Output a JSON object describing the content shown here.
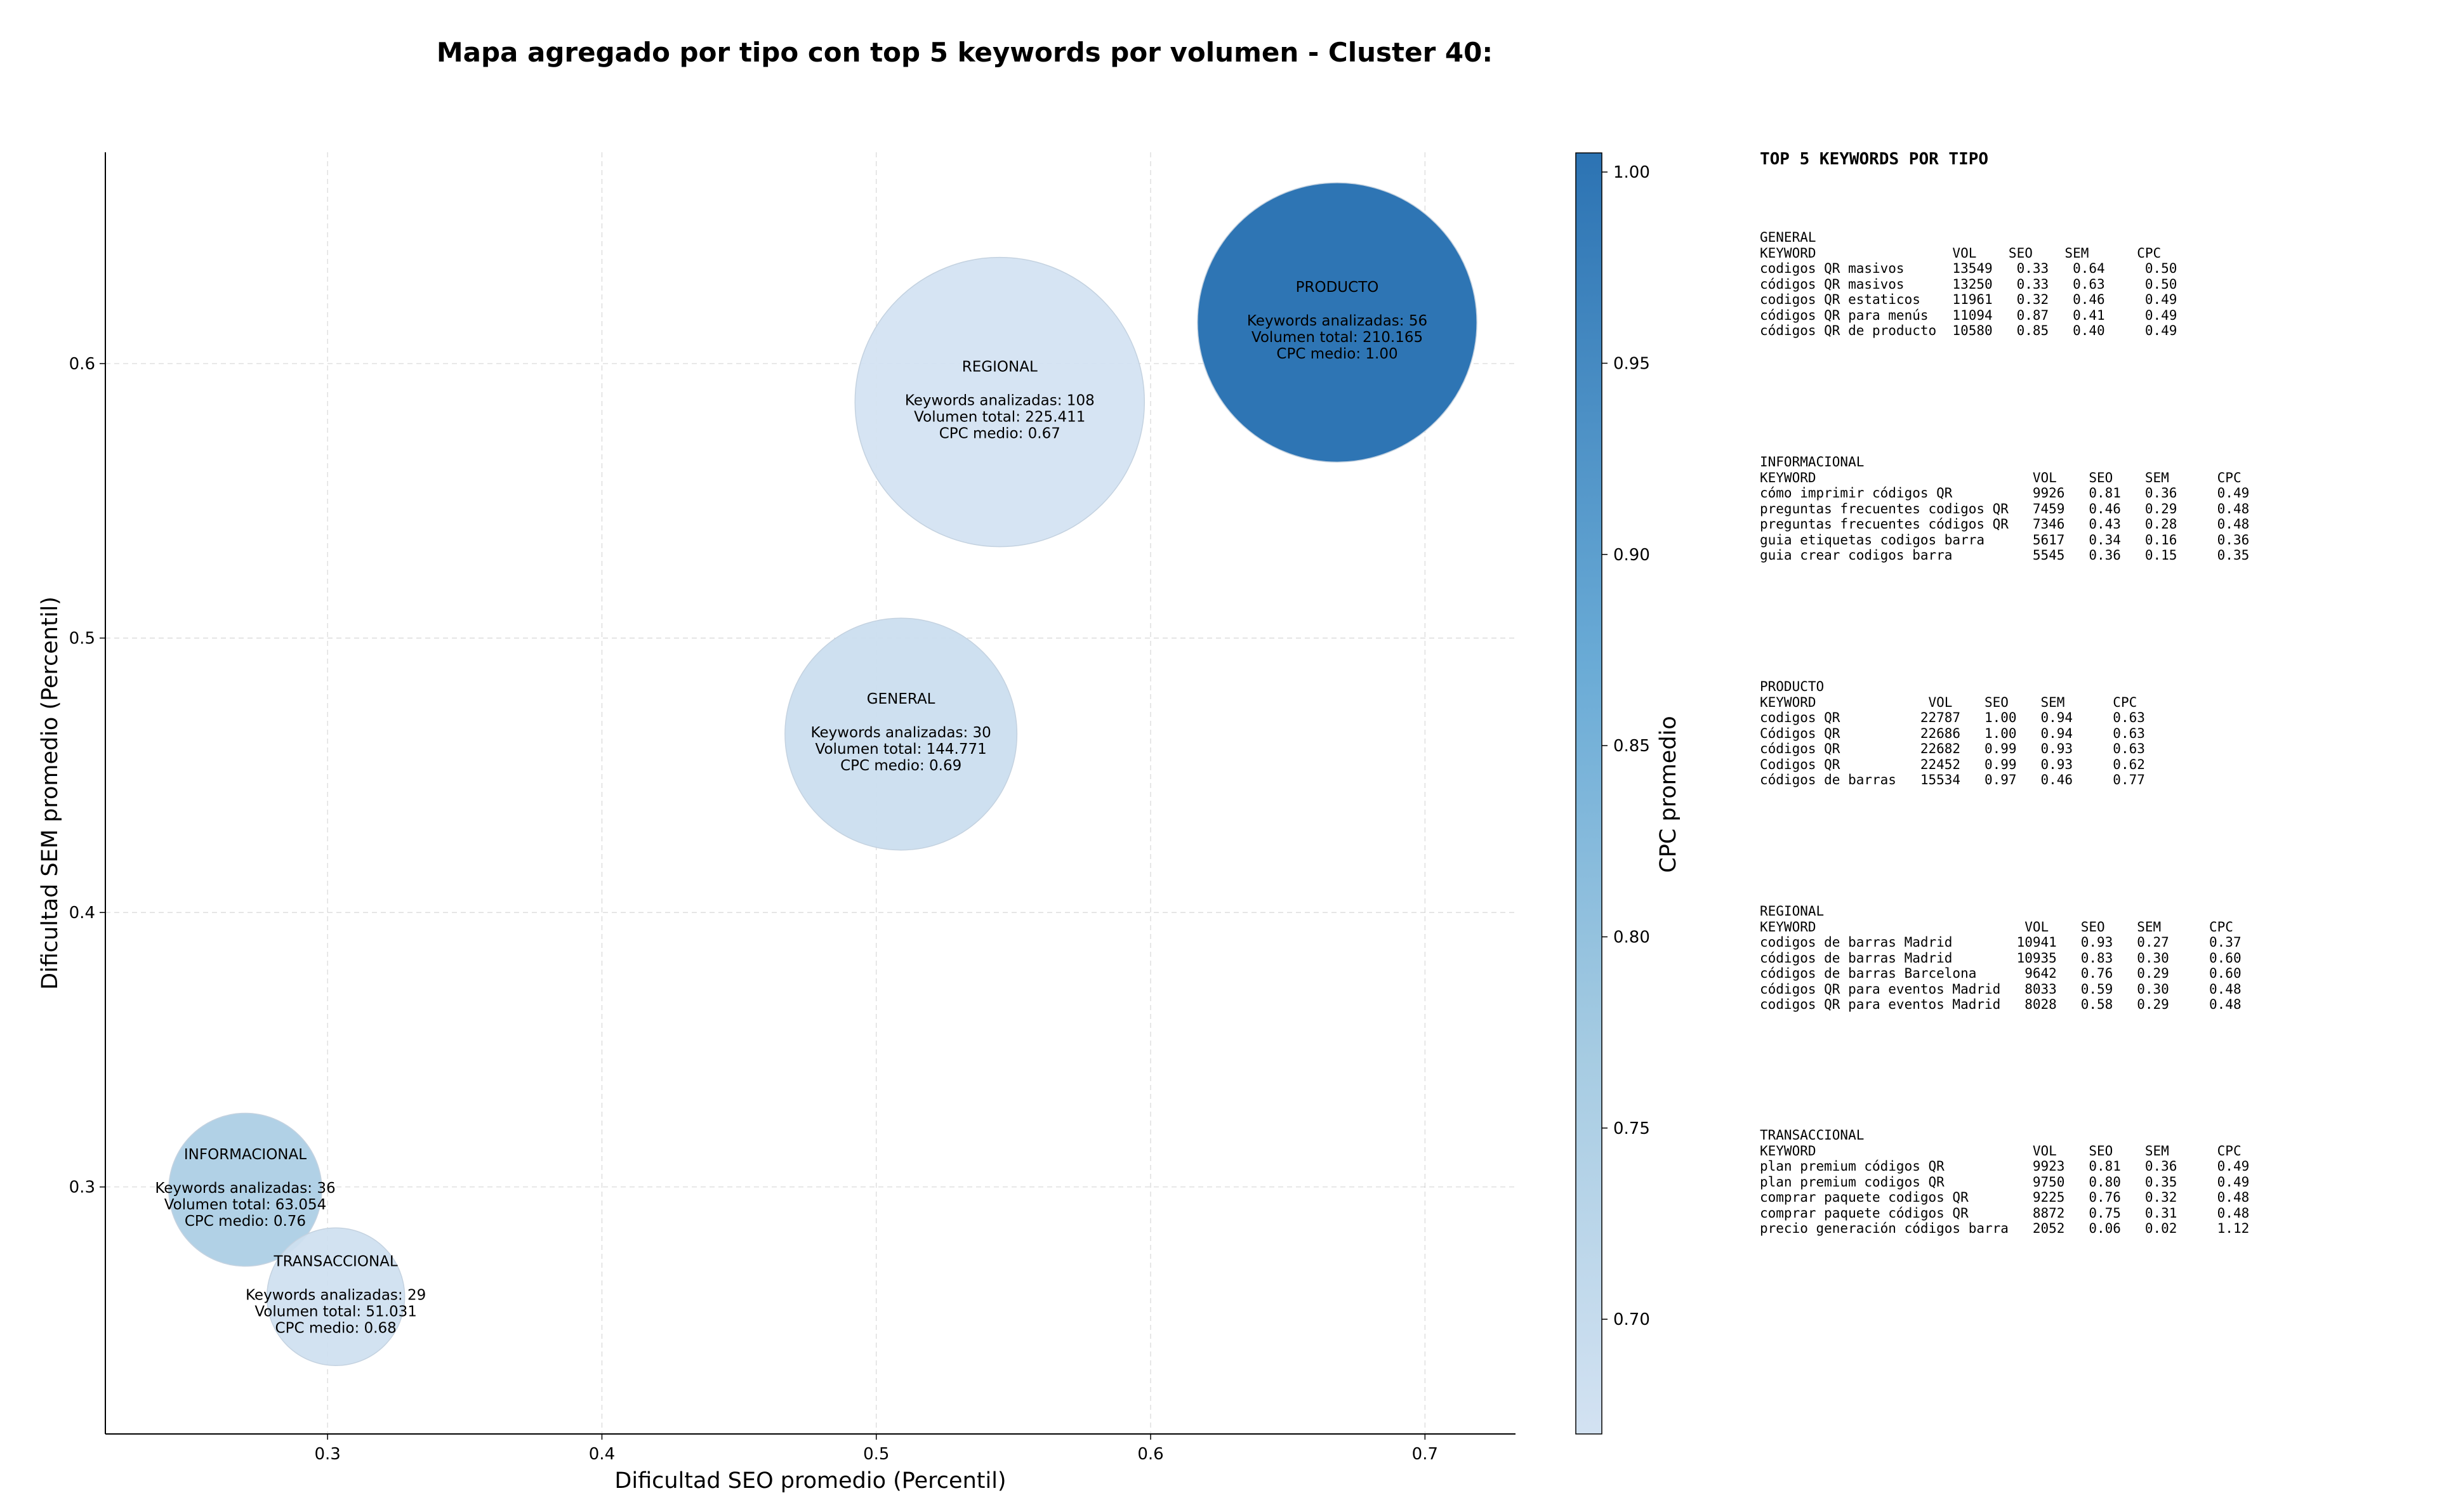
{
  "chart_data": {
    "type": "scatter",
    "title": "Mapa agregado por tipo con top 5 keywords por volumen - Cluster 40:",
    "xlabel": "Dificultad SEO promedio (Percentil)",
    "ylabel": "Dificultad SEM promedio (Percentil)",
    "xlim": [
      0.219,
      0.733
    ],
    "ylim": [
      0.21,
      0.677
    ],
    "xticks": [
      "0.3",
      "0.4",
      "0.5",
      "0.6",
      "0.7"
    ],
    "yticks": [
      "0.3",
      "0.4",
      "0.5",
      "0.6"
    ],
    "grid": true,
    "colorbar": {
      "label": "CPC promedio",
      "range": [
        0.67,
        1.005
      ],
      "ticks": [
        "0.70",
        "0.75",
        "0.80",
        "0.85",
        "0.90",
        "0.95",
        "1.00"
      ]
    },
    "bubbles": [
      {
        "name": "REGIONAL",
        "x": 0.545,
        "y": 0.586,
        "size": 225411,
        "cpc": 0.67,
        "lines": [
          "Keywords analizadas: 108",
          "Volumen total: 225.411",
          "CPC medio: 0.67"
        ]
      },
      {
        "name": "PRODUCTO",
        "x": 0.668,
        "y": 0.615,
        "size": 210165,
        "cpc": 1.0,
        "lines": [
          "Keywords analizadas: 56",
          "Volumen total: 210.165",
          "CPC medio: 1.00"
        ]
      },
      {
        "name": "GENERAL",
        "x": 0.509,
        "y": 0.465,
        "size": 144771,
        "cpc": 0.69,
        "lines": [
          "Keywords analizadas: 30",
          "Volumen total: 144.771",
          "CPC medio: 0.69"
        ]
      },
      {
        "name": "INFORMACIONAL",
        "x": 0.27,
        "y": 0.299,
        "size": 63054,
        "cpc": 0.76,
        "lines": [
          "Keywords analizadas: 36",
          "Volumen total: 63.054",
          "CPC medio: 0.76"
        ]
      },
      {
        "name": "TRANSACCIONAL",
        "x": 0.303,
        "y": 0.26,
        "size": 51031,
        "cpc": 0.68,
        "lines": [
          "Keywords analizadas: 29",
          "Volumen total: 51.031",
          "CPC medio: 0.68"
        ]
      }
    ]
  },
  "side_panel": {
    "title": "TOP 5 KEYWORDS POR TIPO",
    "blocks": [
      {
        "type": "GENERAL",
        "text": "GENERAL\nKEYWORD                 VOL    SEO    SEM      CPC\ncodigos QR masivos      13549   0.33   0.64     0.50\ncódigos QR masivos      13250   0.33   0.63     0.50\ncodigos QR estaticos    11961   0.32   0.46     0.49\ncódigos QR para menús   11094   0.87   0.41     0.49\ncódigos QR de producto  10580   0.85   0.40     0.49"
      },
      {
        "type": "INFORMACIONAL",
        "text": "INFORMACIONAL\nKEYWORD                           VOL    SEO    SEM      CPC\ncómo imprimir códigos QR          9926   0.81   0.36     0.49\npreguntas frecuentes codigos QR   7459   0.46   0.29     0.48\npreguntas frecuentes códigos QR   7346   0.43   0.28     0.48\nguia etiquetas codigos barra      5617   0.34   0.16     0.36\nguia crear codigos barra          5545   0.36   0.15     0.35"
      },
      {
        "type": "PRODUCTO",
        "text": "PRODUCTO\nKEYWORD              VOL    SEO    SEM      CPC\ncodigos QR          22787   1.00   0.94     0.63\nCódigos QR          22686   1.00   0.94     0.63\ncódigos QR          22682   0.99   0.93     0.63\nCodigos QR          22452   0.99   0.93     0.62\ncódigos de barras   15534   0.97   0.46     0.77"
      },
      {
        "type": "REGIONAL",
        "text": "REGIONAL\nKEYWORD                          VOL    SEO    SEM      CPC\ncodigos de barras Madrid        10941   0.93   0.27     0.37\ncódigos de barras Madrid        10935   0.83   0.30     0.60\ncódigos de barras Barcelona      9642   0.76   0.29     0.60\ncódigos QR para eventos Madrid   8033   0.59   0.30     0.48\ncodigos QR para eventos Madrid   8028   0.58   0.29     0.48"
      },
      {
        "type": "TRANSACCIONAL",
        "text": "TRANSACCIONAL\nKEYWORD                           VOL    SEO    SEM      CPC\nplan premium códigos QR           9923   0.81   0.36     0.49\nplan premium codigos QR           9750   0.80   0.35     0.49\ncomprar paquete codigos QR        9225   0.76   0.32     0.48\ncomprar paquete códigos QR        8872   0.75   0.31     0.48\nprecio generación códigos barra   2052   0.06   0.02     1.12"
      }
    ]
  }
}
